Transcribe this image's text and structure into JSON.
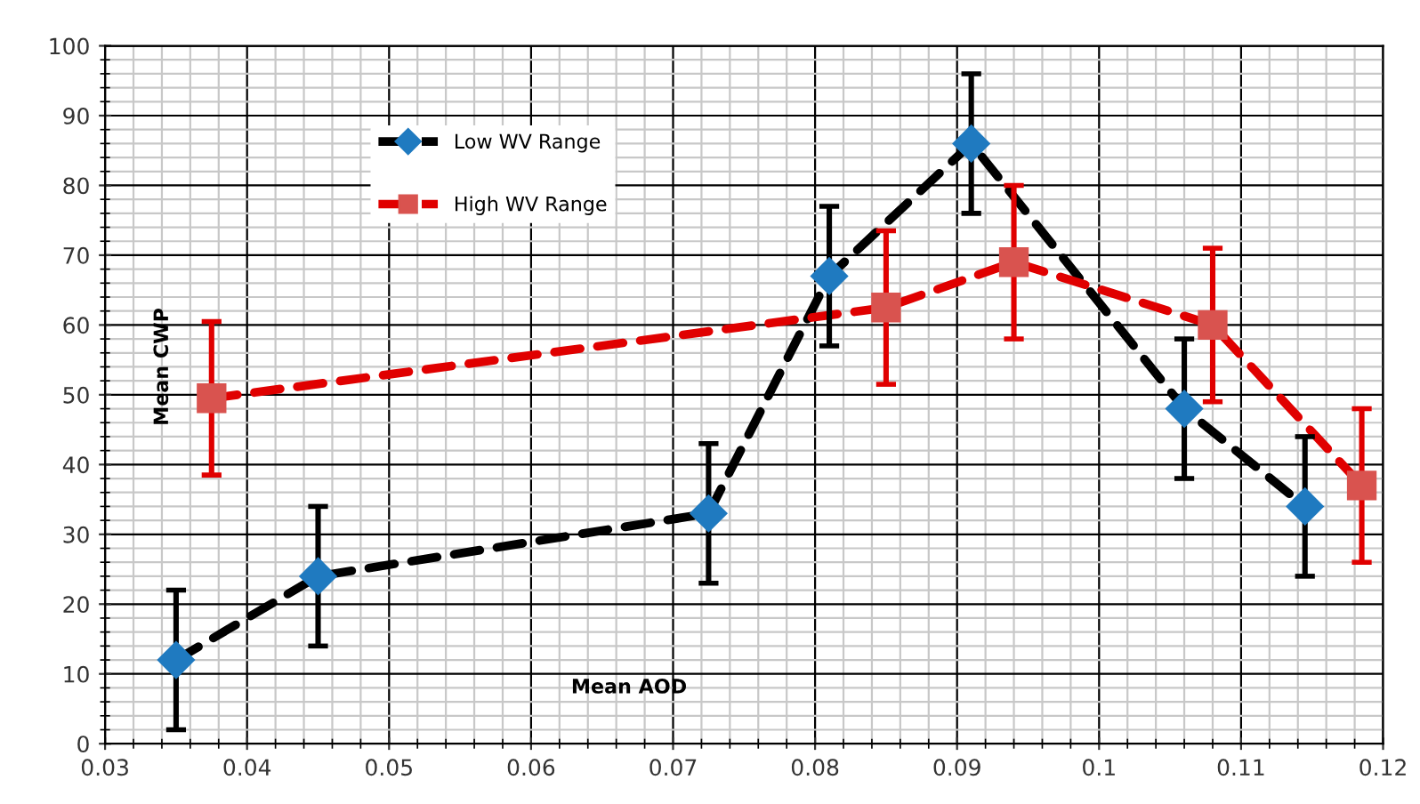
{
  "chart_data": {
    "type": "line",
    "xlabel": "Mean AOD",
    "ylabel": "Mean CWP",
    "xlim": [
      0.03,
      0.12
    ],
    "xticks": [
      0.03,
      0.04,
      0.05,
      0.06,
      0.07,
      0.08,
      0.09,
      0.1,
      0.11,
      0.12
    ],
    "ylim": [
      0,
      100
    ],
    "yticks": [
      0,
      10,
      20,
      30,
      40,
      50,
      60,
      70,
      80,
      90,
      100
    ],
    "grid": true,
    "legend": "top left",
    "line_style": "dashed",
    "series": [
      {
        "name": "Low WV Range",
        "color": "#000000",
        "colors": [
          "#1f7ac0",
          "#1f7ac0",
          "#1f7ac0",
          "#1f7ac0",
          "#1f7ac0",
          "#1f7ac0",
          "#1f7ac0"
        ],
        "marker": "diamond",
        "x": [
          0.035,
          0.045,
          0.0725,
          0.081,
          0.091,
          0.106,
          0.1145
        ],
        "values": [
          12,
          24,
          33,
          67,
          86,
          48,
          34
        ],
        "errors": [
          10,
          10,
          10,
          10,
          10,
          10,
          10
        ]
      },
      {
        "name": "High WV Range",
        "color": "#e00000",
        "colors": [
          "#d9534f",
          "#d9534f",
          "#d9534f",
          "#d9534f",
          "#d9534f"
        ],
        "marker": "square",
        "x": [
          0.0375,
          0.085,
          0.094,
          0.108,
          0.1185
        ],
        "values": [
          49.5,
          62.5,
          69,
          60,
          37
        ],
        "errors": [
          11,
          11,
          11,
          11,
          11
        ]
      }
    ]
  }
}
